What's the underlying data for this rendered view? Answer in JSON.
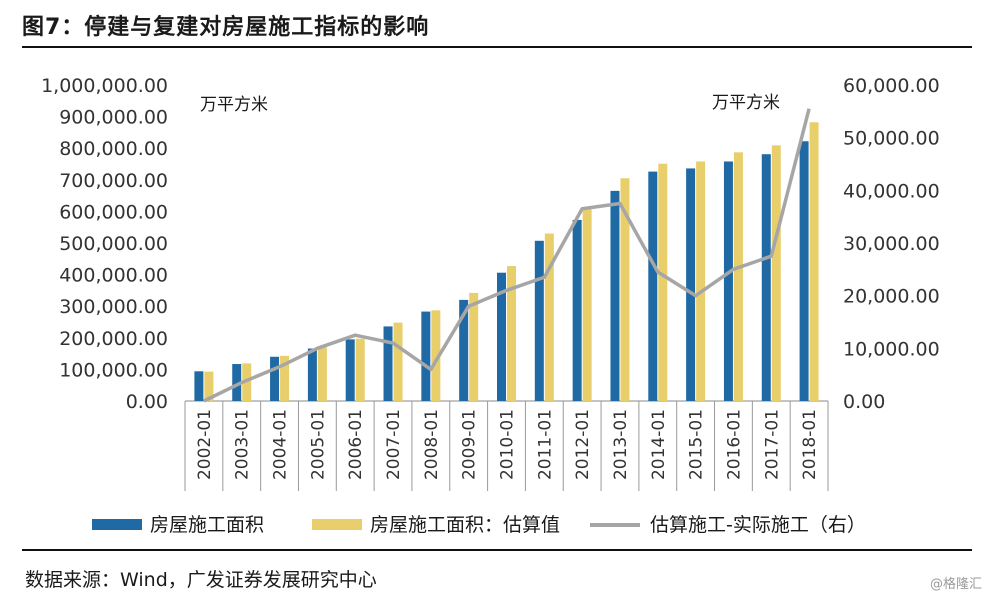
{
  "figure_title": "图7：停建与复建对房屋施工指标的影响",
  "source_text": "数据来源：Wind，广发证券发展研究中心",
  "watermark": "@格隆汇",
  "chart_data": {
    "type": "bar",
    "categories": [
      "2002-01",
      "2003-01",
      "2004-01",
      "2005-01",
      "2006-01",
      "2007-01",
      "2008-01",
      "2009-01",
      "2010-01",
      "2011-01",
      "2012-01",
      "2013-01",
      "2014-01",
      "2015-01",
      "2016-01",
      "2017-01",
      "2018-01"
    ],
    "unit_left": "万平方米",
    "unit_right": "万平方米",
    "y_left_ticks": [
      "0.00",
      "100,000.00",
      "200,000.00",
      "300,000.00",
      "400,000.00",
      "500,000.00",
      "600,000.00",
      "700,000.00",
      "800,000.00",
      "900,000.00",
      "1,000,000.00"
    ],
    "y_right_ticks": [
      "0.00",
      "10,000.00",
      "20,000.00",
      "30,000.00",
      "40,000.00",
      "50,000.00",
      "60,000.00"
    ],
    "ylim_left": [
      0,
      1000000
    ],
    "ylim_right": [
      0,
      60000
    ],
    "grid": false,
    "legend_position": "bottom",
    "series": [
      {
        "name": "房屋施工面积",
        "type": "bar",
        "axis": "left",
        "color": "#1f6aa5",
        "values": [
          94000,
          117000,
          140000,
          166000,
          195000,
          236000,
          283000,
          320000,
          406000,
          507000,
          573000,
          665000,
          726000,
          736000,
          758000,
          781000,
          822000
        ]
      },
      {
        "name": "房屋施工面积：估算值",
        "type": "bar",
        "axis": "left",
        "color": "#e8cf6b",
        "values": [
          93000,
          119000,
          143000,
          170000,
          197000,
          248000,
          287000,
          342000,
          427000,
          530000,
          610000,
          705000,
          751000,
          758000,
          787000,
          809000,
          882000
        ]
      },
      {
        "name": "估算施工-实际施工（右）",
        "type": "line",
        "axis": "right",
        "color": "#a6a6a6",
        "values": [
          0,
          3500,
          6500,
          10000,
          12500,
          11000,
          6000,
          18000,
          21000,
          23500,
          36500,
          37500,
          24500,
          20000,
          25000,
          27500,
          55500
        ]
      }
    ]
  }
}
